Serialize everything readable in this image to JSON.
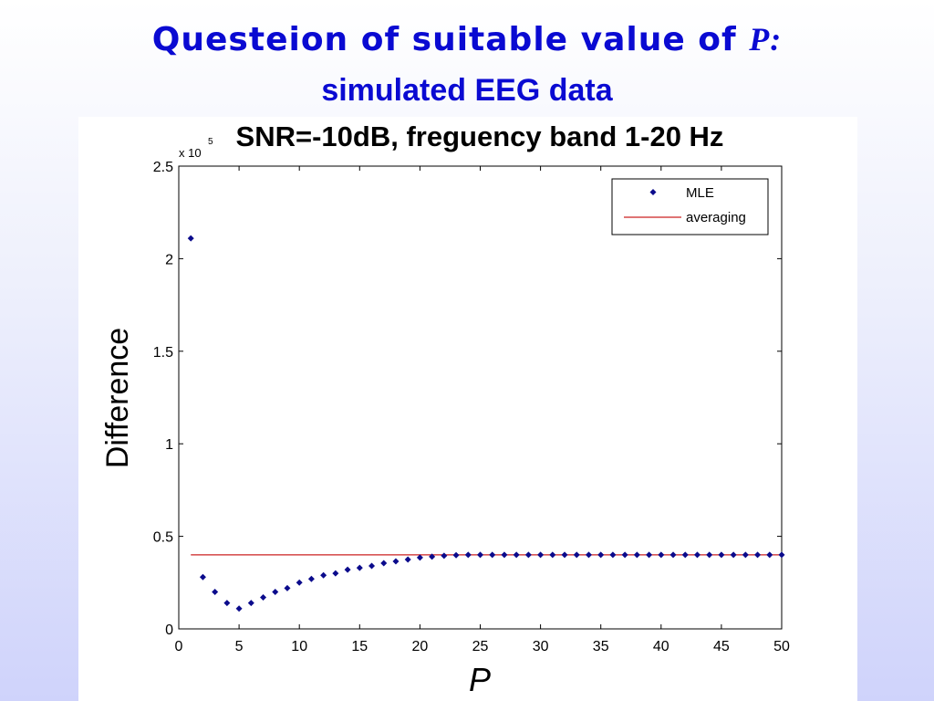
{
  "slide": {
    "title_text": "Questeion of suitable value of",
    "title_variable": "P:",
    "subtitle": "simulated EEG data"
  },
  "colors": {
    "title": "#0a0ad2",
    "mle_marker": "#0b0b8c",
    "averaging_line": "#cc2222"
  },
  "chart_data": {
    "type": "scatter",
    "title": "SNR=-10dB, freguency band 1-20 Hz",
    "xlabel": "P",
    "ylabel": "Difference",
    "y_multiplier": "x 10",
    "y_exponent": "5",
    "xlim": [
      0,
      50
    ],
    "ylim": [
      0,
      2.5
    ],
    "x_ticks": [
      "0",
      "5",
      "10",
      "15",
      "20",
      "25",
      "30",
      "35",
      "40",
      "45",
      "50"
    ],
    "y_ticks": [
      "0",
      "0.5",
      "1",
      "1.5",
      "2",
      "2.5"
    ],
    "x_tick_values": [
      0,
      5,
      10,
      15,
      20,
      25,
      30,
      35,
      40,
      45,
      50
    ],
    "y_tick_values": [
      0,
      0.5,
      1,
      1.5,
      2,
      2.5
    ],
    "legend_position": "top-right",
    "grid": false,
    "series": [
      {
        "name": "MLE",
        "style": "markers",
        "x": [
          1,
          2,
          3,
          4,
          5,
          6,
          7,
          8,
          9,
          10,
          11,
          12,
          13,
          14,
          15,
          16,
          17,
          18,
          19,
          20,
          21,
          22,
          23,
          24,
          25,
          26,
          27,
          28,
          29,
          30,
          31,
          32,
          33,
          34,
          35,
          36,
          37,
          38,
          39,
          40,
          41,
          42,
          43,
          44,
          45,
          46,
          47,
          48,
          49,
          50
        ],
        "y": [
          2.11,
          0.28,
          0.2,
          0.14,
          0.11,
          0.14,
          0.17,
          0.2,
          0.22,
          0.25,
          0.27,
          0.29,
          0.3,
          0.32,
          0.33,
          0.34,
          0.355,
          0.365,
          0.375,
          0.385,
          0.39,
          0.395,
          0.398,
          0.4,
          0.4,
          0.4,
          0.4,
          0.4,
          0.4,
          0.4,
          0.4,
          0.4,
          0.4,
          0.4,
          0.4,
          0.4,
          0.4,
          0.4,
          0.4,
          0.4,
          0.4,
          0.4,
          0.4,
          0.4,
          0.4,
          0.4,
          0.4,
          0.4,
          0.4,
          0.4
        ]
      },
      {
        "name": "averaging",
        "style": "line",
        "x": [
          1,
          50
        ],
        "y": [
          0.4,
          0.4
        ]
      }
    ]
  }
}
